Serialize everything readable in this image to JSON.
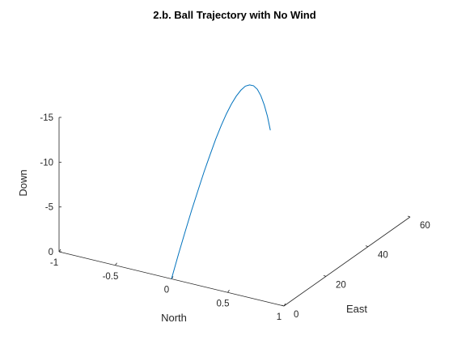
{
  "chart_data": {
    "type": "line",
    "title": "2.b. Ball Trajectory with No Wind",
    "xlabel": "North",
    "ylabel": "East",
    "zlabel": "Down",
    "xlim": [
      -1,
      1
    ],
    "ylim": [
      0,
      60
    ],
    "zlim": [
      -15,
      0
    ],
    "xticks": [
      -1,
      -0.5,
      0,
      0.5,
      1
    ],
    "xtick_labels": [
      "-1",
      "-0.5",
      "0",
      "0.5",
      "1"
    ],
    "yticks": [
      0,
      20,
      40,
      60
    ],
    "ytick_labels": [
      "0",
      "20",
      "40",
      "60"
    ],
    "zticks": [
      0,
      -5,
      -10,
      -15
    ],
    "ztick_labels": [
      "0",
      "-5",
      "-10",
      "-15"
    ],
    "grid": false,
    "series": [
      {
        "color": "#0072BD",
        "x": [
          0,
          0,
          0,
          0,
          0,
          0,
          0,
          0,
          0,
          0,
          0,
          0,
          0,
          0,
          0,
          0,
          0,
          0,
          0,
          0,
          0
        ],
        "y": [
          0,
          3.3,
          6.5,
          9.6,
          12.6,
          15.5,
          18.3,
          21.0,
          23.6,
          26.1,
          28.5,
          30.8,
          33.0,
          35.1,
          37.1,
          39.0,
          40.8,
          42.5,
          44.1,
          45.6,
          47.0
        ],
        "z": [
          0,
          -2.2,
          -4.2,
          -6.1,
          -7.8,
          -9.4,
          -10.8,
          -12.1,
          -13.2,
          -14.1,
          -14.8,
          -15.3,
          -15.6,
          -15.7,
          -15.5,
          -15.1,
          -14.4,
          -13.4,
          -12.1,
          -10.6,
          -8.8
        ]
      }
    ]
  }
}
